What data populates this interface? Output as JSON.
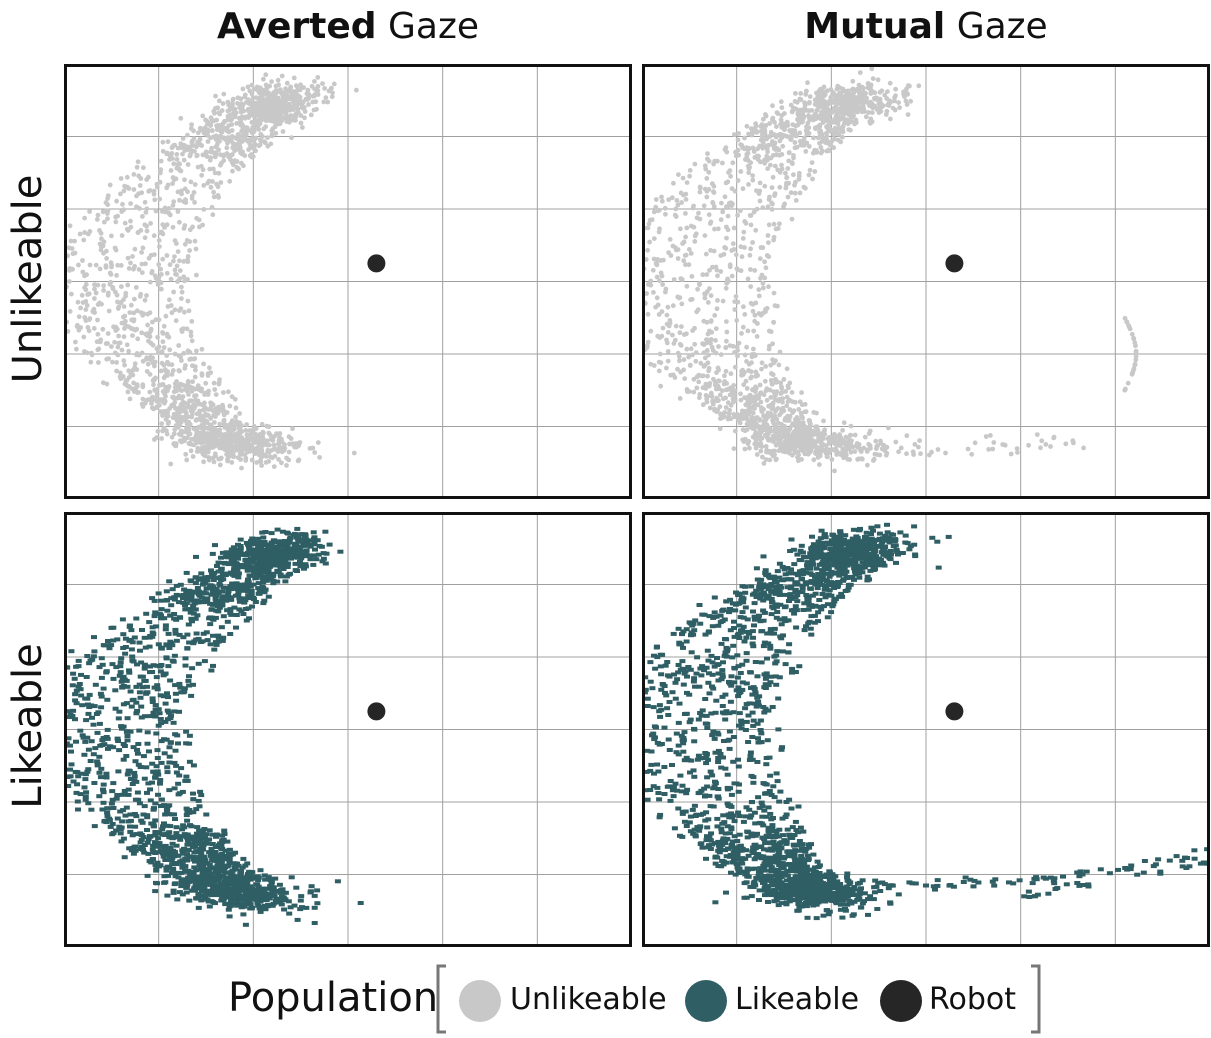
{
  "columns": [
    {
      "bold": "Averted",
      "rest": "Gaze"
    },
    {
      "bold": "Mutual",
      "rest": "Gaze"
    }
  ],
  "rows": [
    "Unlikeable",
    "Likeable"
  ],
  "legend": {
    "title": "Population",
    "items": [
      {
        "label": "Unlikeable",
        "color": "#c8c8c8"
      },
      {
        "label": "Likeable",
        "color": "#2f5f65"
      },
      {
        "label": "Robot",
        "color": "#262626"
      }
    ]
  },
  "chart_data": {
    "type": "scatter",
    "layout": "2x2 facet grid (columns: gaze condition, rows: population)",
    "grid": true,
    "axis_ticks_labeled": false,
    "xlim": [
      0,
      6
    ],
    "ylim": [
      0,
      6
    ],
    "panels": [
      {
        "column": "Averted Gaze",
        "row": "Unlikeable",
        "series": [
          {
            "name": "Unlikeable",
            "color": "#c8c8c8",
            "approx_points": 1500,
            "shape": "crescent arc",
            "extent_x": [
              0.3,
              2.8
            ],
            "extent_y": [
              0.6,
              5.8
            ]
          },
          {
            "name": "Robot",
            "color": "#262626",
            "points": [
              [
                3.3,
                3.25
              ]
            ]
          }
        ]
      },
      {
        "column": "Mutual Gaze",
        "row": "Unlikeable",
        "series": [
          {
            "name": "Unlikeable",
            "color": "#c8c8c8",
            "approx_points": 1500,
            "shape": "crescent arc with sparse tail to the right",
            "extent_x": [
              0.3,
              5.2
            ],
            "extent_y": [
              0.6,
              5.8
            ]
          },
          {
            "name": "Robot",
            "color": "#262626",
            "points": [
              [
                3.3,
                3.25
              ]
            ]
          }
        ]
      },
      {
        "column": "Averted Gaze",
        "row": "Likeable",
        "series": [
          {
            "name": "Likeable",
            "color": "#2f5f65",
            "approx_points": 1500,
            "shape": "crescent arc",
            "extent_x": [
              0.3,
              3.0
            ],
            "extent_y": [
              0.6,
              5.6
            ]
          },
          {
            "name": "Robot",
            "color": "#262626",
            "points": [
              [
                3.3,
                3.25
              ]
            ]
          }
        ]
      },
      {
        "column": "Mutual Gaze",
        "row": "Likeable",
        "series": [
          {
            "name": "Likeable",
            "color": "#2f5f65",
            "approx_points": 1500,
            "shape": "crescent arc with long tail to the right",
            "extent_x": [
              0.2,
              6.0
            ],
            "extent_y": [
              0.6,
              5.8
            ]
          },
          {
            "name": "Robot",
            "color": "#262626",
            "points": [
              [
                3.3,
                3.25
              ]
            ]
          }
        ]
      }
    ]
  }
}
